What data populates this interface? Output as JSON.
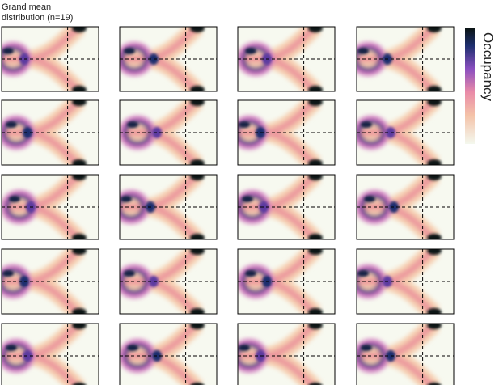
{
  "figure": {
    "title_lines": [
      "Grand mean",
      "distribution (n=19)"
    ],
    "colorbar_label": "Occupancy"
  }
}
